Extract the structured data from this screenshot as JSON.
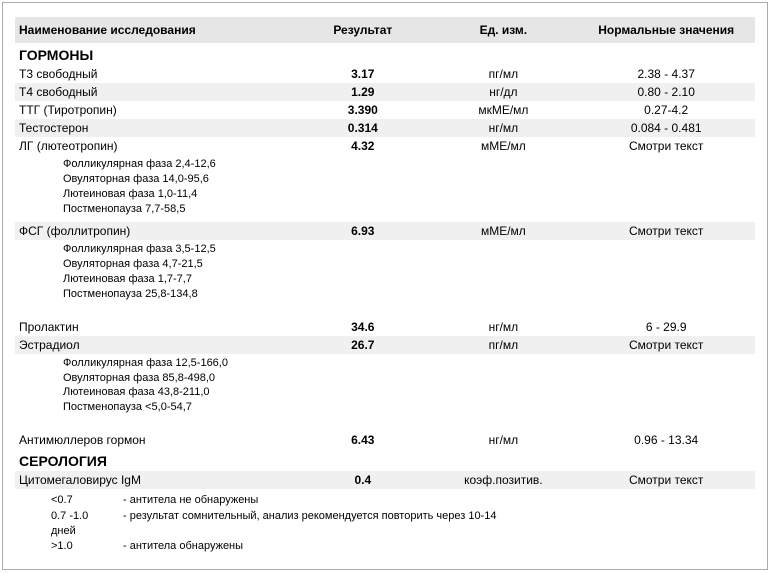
{
  "header": {
    "name": "Наименование исследования",
    "result": "Результат",
    "unit": "Ед. изм.",
    "ref": "Нормальные значения"
  },
  "colors": {
    "header_bg": "#e6e6e6",
    "shade_bg": "#f0f0f0",
    "text": "#000000",
    "border": "#aaaaaa"
  },
  "sections": [
    {
      "title": "ГОРМОНЫ",
      "rows": [
        {
          "name": "Т3 свободный",
          "result": "3.17",
          "unit": "пг/мл",
          "ref": "2.38 - 4.37",
          "shade": false
        },
        {
          "name": "Т4 свободный",
          "result": "1.29",
          "unit": "нг/дл",
          "ref": "0.80 - 2.10",
          "shade": true
        },
        {
          "name": "ТТГ (Тиротропин)",
          "result": "3.390",
          "unit": "мкМЕ/мл",
          "ref": "0.27-4.2",
          "shade": false
        },
        {
          "name": "Тестостерон",
          "result": "0.314",
          "unit": "нг/мл",
          "ref": "0.084 - 0.481",
          "shade": true
        },
        {
          "name": "ЛГ (лютеотропин)",
          "result": "4.32",
          "unit": "мМЕ/мл",
          "ref": "Смотри текст",
          "shade": false,
          "notes": [
            "Фолликулярная фаза 2,4-12,6",
            "Овуляторная фаза   14,0-95,6",
            "Лютеиновая фаза    1,0-11,4",
            "Постменопауза      7,7-58,5"
          ]
        },
        {
          "name": "ФСГ (фоллитропин)",
          "result": "6.93",
          "unit": "мМЕ/мл",
          "ref": "Смотри текст",
          "shade": true,
          "notes": [
            "Фолликулярная фаза 3,5-12,5",
            "Овуляторная фаза 4,7-21,5",
            "Лютеиновая фаза 1,7-7,7",
            "Постменопауза 25,8-134,8"
          ],
          "gap_after": true
        },
        {
          "name": "Пролактин",
          "result": "34.6",
          "unit": "нг/мл",
          "ref": "6 - 29.9",
          "shade": false
        },
        {
          "name": "Эстрадиол",
          "result": "26.7",
          "unit": "пг/мл",
          "ref": "Смотри текст",
          "shade": true,
          "notes": [
            "Фолликулярная фаза 12,5-166,0",
            "Овуляторная фаза 85,8-498,0",
            "Лютеиновая фаза 43,8-211,0",
            "Постменопауза <5,0-54,7"
          ],
          "gap_after": true
        },
        {
          "name": "Антимюллеров гормон",
          "result": "6.43",
          "unit": "нг/мл",
          "ref": "0.96 - 13.34",
          "shade": false
        }
      ]
    },
    {
      "title": "СЕРОЛОГИЯ",
      "rows": [
        {
          "name": "Цитомегаловирус IgM",
          "result": "0.4",
          "unit": "коэф.позитив.",
          "ref": "Смотри текст",
          "shade": true
        }
      ]
    }
  ],
  "interpretation": [
    {
      "key": "<0.7",
      "text": "- антитела не обнаружены"
    },
    {
      "key": "0.7 -1.0",
      "text": "- результат сомнительный, анализ рекомендуется повторить через 10-14",
      "cont": "дней"
    },
    {
      "key": ">1.0",
      "text": "- антитела обнаружены"
    }
  ]
}
